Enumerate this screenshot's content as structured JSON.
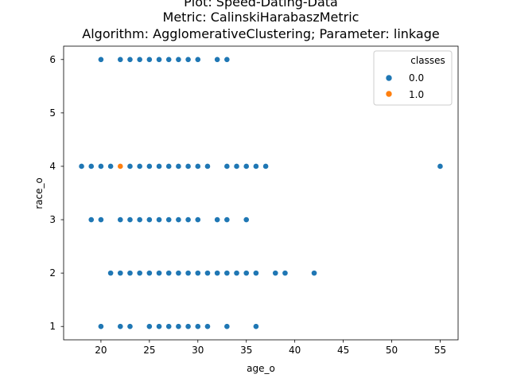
{
  "chart_data": {
    "type": "scatter",
    "title_lines": [
      "Plot: Speed-Dating-Data",
      "Metric: CalinskiHarabaszMetric",
      "Algorithm: AgglomerativeClustering; Parameter: linkage"
    ],
    "xlabel": "age_o",
    "ylabel": "race_o",
    "xlim": [
      16.15,
      56.85
    ],
    "ylim": [
      0.75,
      6.25
    ],
    "xticks": [
      "20",
      "25",
      "30",
      "35",
      "40",
      "45",
      "50",
      "55"
    ],
    "yticks": [
      "1",
      "2",
      "3",
      "4",
      "5",
      "6"
    ],
    "grid": false,
    "legend": {
      "title": "classes",
      "placement": "top-right"
    },
    "series": [
      {
        "name": "0.0",
        "color": "#1f77b4",
        "points": [
          [
            20,
            6
          ],
          [
            22,
            6
          ],
          [
            23,
            6
          ],
          [
            24,
            6
          ],
          [
            25,
            6
          ],
          [
            26,
            6
          ],
          [
            27,
            6
          ],
          [
            28,
            6
          ],
          [
            29,
            6
          ],
          [
            30,
            6
          ],
          [
            32,
            6
          ],
          [
            33,
            6
          ],
          [
            18,
            4
          ],
          [
            19,
            4
          ],
          [
            20,
            4
          ],
          [
            21,
            4
          ],
          [
            23,
            4
          ],
          [
            24,
            4
          ],
          [
            25,
            4
          ],
          [
            26,
            4
          ],
          [
            27,
            4
          ],
          [
            28,
            4
          ],
          [
            29,
            4
          ],
          [
            30,
            4
          ],
          [
            31,
            4
          ],
          [
            33,
            4
          ],
          [
            34,
            4
          ],
          [
            35,
            4
          ],
          [
            36,
            4
          ],
          [
            37,
            4
          ],
          [
            55,
            4
          ],
          [
            19,
            3
          ],
          [
            20,
            3
          ],
          [
            22,
            3
          ],
          [
            23,
            3
          ],
          [
            24,
            3
          ],
          [
            25,
            3
          ],
          [
            26,
            3
          ],
          [
            27,
            3
          ],
          [
            28,
            3
          ],
          [
            29,
            3
          ],
          [
            30,
            3
          ],
          [
            32,
            3
          ],
          [
            33,
            3
          ],
          [
            35,
            3
          ],
          [
            21,
            2
          ],
          [
            22,
            2
          ],
          [
            23,
            2
          ],
          [
            24,
            2
          ],
          [
            25,
            2
          ],
          [
            26,
            2
          ],
          [
            27,
            2
          ],
          [
            28,
            2
          ],
          [
            29,
            2
          ],
          [
            30,
            2
          ],
          [
            31,
            2
          ],
          [
            32,
            2
          ],
          [
            33,
            2
          ],
          [
            34,
            2
          ],
          [
            35,
            2
          ],
          [
            36,
            2
          ],
          [
            38,
            2
          ],
          [
            39,
            2
          ],
          [
            42,
            2
          ],
          [
            20,
            1
          ],
          [
            22,
            1
          ],
          [
            23,
            1
          ],
          [
            25,
            1
          ],
          [
            26,
            1
          ],
          [
            27,
            1
          ],
          [
            28,
            1
          ],
          [
            29,
            1
          ],
          [
            30,
            1
          ],
          [
            31,
            1
          ],
          [
            33,
            1
          ],
          [
            36,
            1
          ]
        ]
      },
      {
        "name": "1.0",
        "color": "#ff7f0e",
        "points": [
          [
            22,
            4
          ]
        ]
      }
    ]
  }
}
